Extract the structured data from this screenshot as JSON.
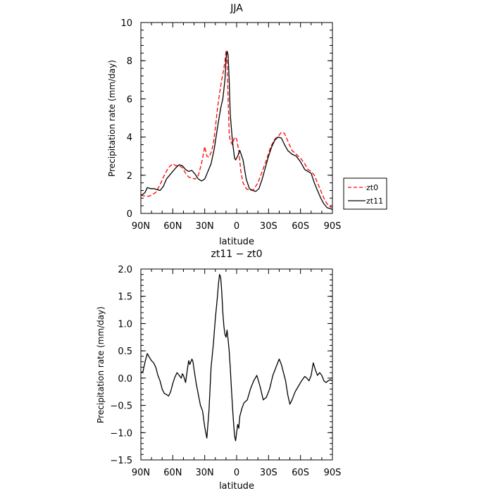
{
  "chart_data": [
    {
      "type": "line",
      "title": "JJA",
      "xlabel": "latitude",
      "ylabel": "Precipitation rate (mm/day)",
      "x_tick_labels": [
        "90N",
        "60N",
        "30N",
        "0",
        "30S",
        "60S",
        "90S"
      ],
      "x_tick_values": [
        90,
        60,
        30,
        0,
        -30,
        -60,
        -90
      ],
      "xlim": [
        90,
        -90
      ],
      "ylim": [
        0,
        10
      ],
      "y_tick_values": [
        0,
        2,
        4,
        6,
        8,
        10
      ],
      "y_tick_labels": [
        "0",
        "2",
        "4",
        "6",
        "8",
        "10"
      ],
      "legend_position": "right",
      "series": [
        {
          "name": "zt0",
          "color": "#ff0000",
          "dash": true,
          "x": [
            90,
            87,
            83,
            80,
            76,
            72,
            68,
            64,
            60,
            57,
            54,
            51,
            48,
            45,
            42,
            39,
            36,
            33,
            30,
            28,
            26,
            24,
            22,
            20,
            18,
            16,
            14,
            12,
            11,
            10,
            9,
            8,
            7,
            6,
            4,
            2,
            0,
            -2,
            -4,
            -6,
            -9,
            -12,
            -16,
            -20,
            -24,
            -28,
            -32,
            -36,
            -40,
            -42,
            -45,
            -48,
            -52,
            -56,
            -60,
            -64,
            -67,
            -70,
            -73,
            -76,
            -79,
            -82,
            -85,
            -88,
            -90
          ],
          "y": [
            0.95,
            0.92,
            0.9,
            0.95,
            1.1,
            1.5,
            2.0,
            2.4,
            2.6,
            2.5,
            2.5,
            2.4,
            2.1,
            1.9,
            1.85,
            1.8,
            2.0,
            2.6,
            3.5,
            3.0,
            2.95,
            3.2,
            3.6,
            4.5,
            5.5,
            6.3,
            7.0,
            7.6,
            8.0,
            8.5,
            8.0,
            6.0,
            4.2,
            3.8,
            3.6,
            4.0,
            3.9,
            3.3,
            2.2,
            1.6,
            1.3,
            1.2,
            1.25,
            1.6,
            2.2,
            2.8,
            3.5,
            3.9,
            4.1,
            4.25,
            4.2,
            3.8,
            3.3,
            3.1,
            2.9,
            2.6,
            2.3,
            2.2,
            2.0,
            1.6,
            1.2,
            0.8,
            0.5,
            0.35,
            0.3
          ]
        },
        {
          "name": "zt11",
          "color": "#000000",
          "dash": false,
          "x": [
            90,
            88,
            86,
            84,
            81,
            78,
            75,
            72,
            69,
            66,
            63,
            60,
            57,
            54,
            51,
            48,
            45,
            42,
            39,
            36,
            33,
            30,
            27,
            24,
            21,
            18,
            15,
            13,
            11,
            10,
            9,
            8,
            7,
            6,
            4,
            2,
            1,
            -1,
            -3,
            -6,
            -9,
            -12,
            -15,
            -18,
            -21,
            -24,
            -27,
            -30,
            -33,
            -36,
            -39,
            -42,
            -45,
            -48,
            -52,
            -56,
            -60,
            -64,
            -67,
            -70,
            -73,
            -76,
            -79,
            -82,
            -85,
            -88,
            -90
          ],
          "y": [
            0.95,
            1.0,
            1.1,
            1.35,
            1.3,
            1.3,
            1.25,
            1.2,
            1.4,
            1.8,
            2.0,
            2.2,
            2.4,
            2.55,
            2.5,
            2.3,
            2.2,
            2.25,
            2.05,
            1.8,
            1.7,
            1.8,
            2.2,
            2.6,
            3.4,
            4.5,
            5.5,
            6.0,
            7.0,
            8.1,
            8.5,
            8.3,
            7.0,
            5.2,
            3.8,
            2.9,
            2.8,
            3.0,
            3.3,
            2.8,
            1.8,
            1.3,
            1.2,
            1.15,
            1.3,
            1.8,
            2.4,
            3.0,
            3.5,
            3.85,
            4.0,
            3.95,
            3.6,
            3.3,
            3.1,
            3.0,
            2.7,
            2.3,
            2.2,
            2.1,
            1.6,
            1.2,
            0.8,
            0.5,
            0.3,
            0.25,
            0.2
          ]
        }
      ]
    },
    {
      "type": "line",
      "title": "zt11 − zt0",
      "xlabel": "latitude",
      "ylabel": "Precipitation rate (mm/day)",
      "x_tick_labels": [
        "90N",
        "60N",
        "30N",
        "0",
        "30S",
        "60S",
        "90S"
      ],
      "x_tick_values": [
        90,
        60,
        30,
        0,
        -30,
        -60,
        -90
      ],
      "xlim": [
        90,
        -90
      ],
      "ylim": [
        -1.5,
        2.0
      ],
      "y_tick_values": [
        -1.5,
        -1.0,
        -0.5,
        0.0,
        0.5,
        1.0,
        1.5,
        2.0
      ],
      "y_tick_labels": [
        "−1.5",
        "−1.0",
        "−0.5",
        "0.0",
        "0.5",
        "1.0",
        "1.5",
        "2.0"
      ],
      "series": [
        {
          "name": "",
          "color": "#000000",
          "dash": false,
          "x": [
            90,
            88,
            86,
            84,
            82,
            80,
            78,
            76,
            74,
            72,
            70,
            68,
            66,
            64,
            62,
            60,
            58,
            56,
            54,
            52,
            51,
            50,
            48,
            46,
            45,
            44,
            42,
            41,
            40,
            38,
            36,
            34,
            32,
            30,
            28,
            26,
            25,
            24,
            22,
            20,
            18,
            17,
            16,
            15,
            14,
            13,
            12,
            11,
            10,
            9,
            8,
            7,
            6,
            5,
            4,
            3,
            2,
            1,
            0,
            -1,
            -2,
            -3,
            -5,
            -7,
            -10,
            -13,
            -16,
            -19,
            -22,
            -25,
            -28,
            -31,
            -34,
            -37,
            -39,
            -40,
            -42,
            -44,
            -46,
            -48,
            -50,
            -52,
            -55,
            -58,
            -61,
            -64,
            -66,
            -68,
            -70,
            -72,
            -74,
            -76,
            -78,
            -80,
            -82,
            -84,
            -86,
            -88,
            -90
          ],
          "y": [
            0.1,
            0.12,
            0.3,
            0.45,
            0.38,
            0.32,
            0.28,
            0.2,
            0.05,
            -0.05,
            -0.2,
            -0.28,
            -0.3,
            -0.33,
            -0.25,
            -0.1,
            0.02,
            0.1,
            0.05,
            0.0,
            0.08,
            0.05,
            -0.08,
            0.2,
            0.32,
            0.25,
            0.35,
            0.3,
            0.15,
            -0.1,
            -0.3,
            -0.5,
            -0.6,
            -0.9,
            -1.1,
            -0.6,
            -0.2,
            0.2,
            0.6,
            1.1,
            1.5,
            1.75,
            1.9,
            1.85,
            1.6,
            1.2,
            0.95,
            0.8,
            0.75,
            0.88,
            0.7,
            0.5,
            0.2,
            -0.15,
            -0.5,
            -0.8,
            -1.05,
            -1.15,
            -1.0,
            -0.85,
            -0.92,
            -0.7,
            -0.55,
            -0.45,
            -0.4,
            -0.2,
            -0.05,
            0.05,
            -0.15,
            -0.4,
            -0.35,
            -0.2,
            0.05,
            0.2,
            0.3,
            0.35,
            0.25,
            0.1,
            -0.05,
            -0.3,
            -0.48,
            -0.4,
            -0.25,
            -0.15,
            -0.05,
            0.03,
            0.0,
            -0.05,
            0.05,
            0.28,
            0.15,
            0.05,
            0.1,
            0.05,
            -0.05,
            -0.08,
            -0.05,
            -0.03,
            -0.05
          ]
        }
      ]
    }
  ]
}
